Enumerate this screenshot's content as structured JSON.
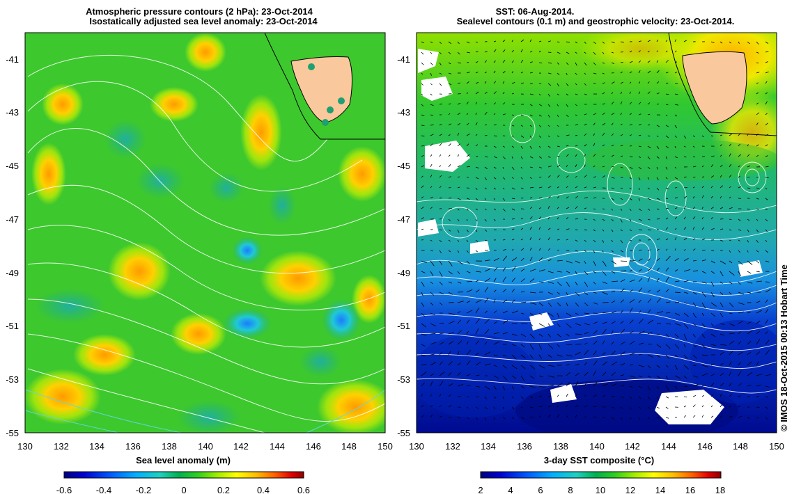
{
  "left_panel": {
    "title_line1": "Atmospheric pressure contours (2 hPa): 23-Oct-2014",
    "title_line2": "Isostatically adjusted sea level anomaly: 23-Oct-2014",
    "xlabel": "Sea level anomaly (m)",
    "x_ticks": [
      "130",
      "132",
      "134",
      "136",
      "138",
      "140",
      "142",
      "144",
      "146",
      "148",
      "150"
    ],
    "y_ticks": [
      "-41",
      "-43",
      "-45",
      "-47",
      "-49",
      "-51",
      "-53",
      "-55"
    ],
    "colorbar_ticks": [
      "-0.6",
      "-0.4",
      "-0.2",
      "0",
      "0.2",
      "0.4",
      "0.6"
    ],
    "colorbar_range": [
      -0.6,
      0.6
    ]
  },
  "right_panel": {
    "title_line1": "SST: 06-Aug-2014.",
    "title_line2": "Sealevel contours (0.1 m) and geostrophic velocity: 23-Oct-2014.",
    "xlabel": "3-day SST composite (°C)",
    "x_ticks": [
      "130",
      "132",
      "134",
      "136",
      "138",
      "140",
      "142",
      "144",
      "146",
      "148",
      "150"
    ],
    "y_ticks": [
      "-41",
      "-43",
      "-45",
      "-47",
      "-49",
      "-51",
      "-53",
      "-55"
    ],
    "colorbar_ticks": [
      "2",
      "4",
      "6",
      "8",
      "10",
      "12",
      "14",
      "16",
      "18"
    ],
    "colorbar_range": [
      1,
      19
    ]
  },
  "map_extent": {
    "lon": [
      130,
      150
    ],
    "lat": [
      -55,
      -40
    ]
  },
  "credit": "© IMOS 18-Oct-2015 00:13 Hobart Time",
  "colors": {
    "land": "#f9c89c",
    "contour": "#ffffff",
    "colormap": [
      "#000080",
      "#0000d0",
      "#0060ff",
      "#00c0ff",
      "#30e0b0",
      "#00b050",
      "#10c020",
      "#40e000",
      "#c0f000",
      "#ffff00",
      "#ffb000",
      "#ff6000",
      "#d00000",
      "#800000"
    ]
  }
}
